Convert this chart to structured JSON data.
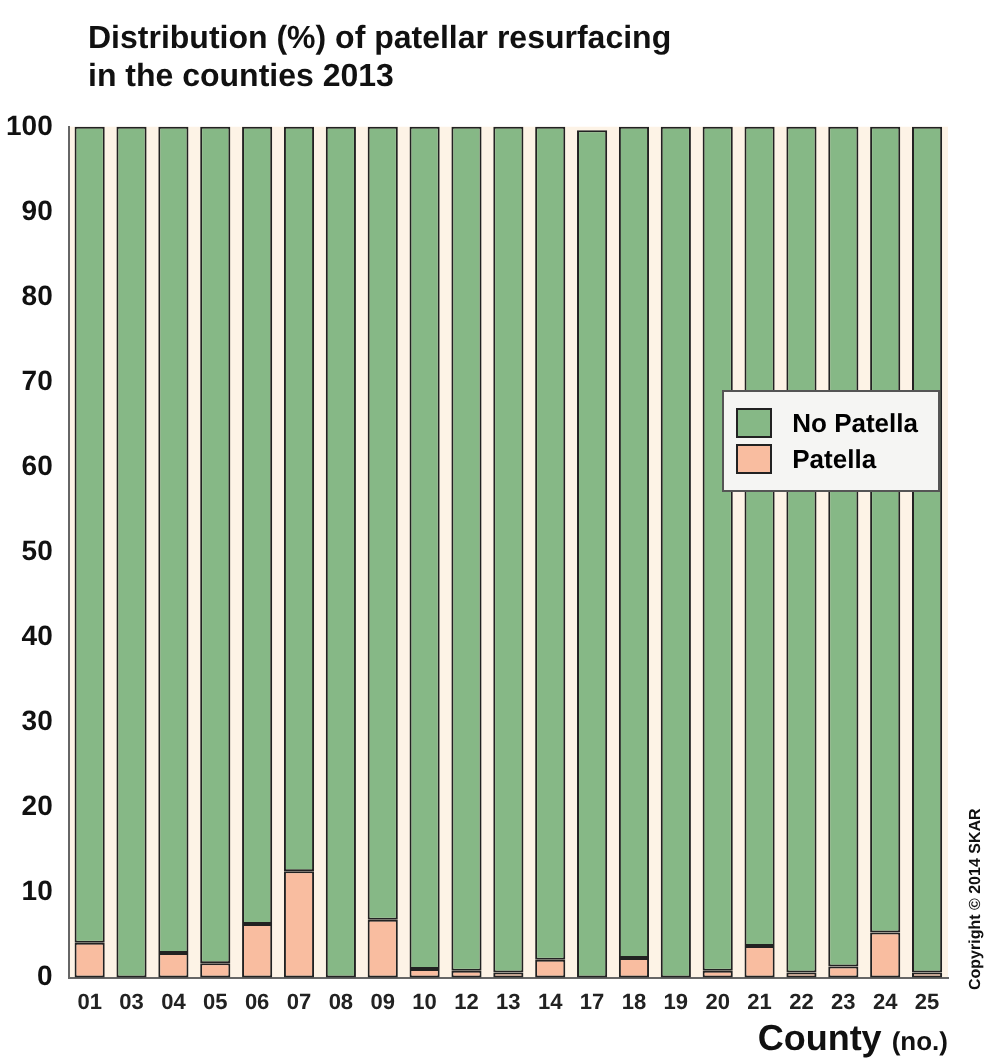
{
  "chart_data": {
    "type": "bar",
    "title": "Distribution (%) of patellar resurfacing in the counties 2013",
    "xlabel": "County (no.)",
    "categories": [
      "01",
      "03",
      "04",
      "05",
      "06",
      "07",
      "08",
      "09",
      "10",
      "12",
      "13",
      "14",
      "17",
      "18",
      "19",
      "20",
      "21",
      "22",
      "23",
      "24",
      "25"
    ],
    "stacked": true,
    "series": [
      {
        "name": "Patella",
        "color": "#f9bda0",
        "values": [
          4.1,
          0,
          2.9,
          1.7,
          6.3,
          12.5,
          0,
          6.8,
          1.0,
          0.8,
          0.6,
          2.1,
          0,
          2.3,
          0,
          0.8,
          3.7,
          0.6,
          1.3,
          5.3,
          0.6
        ]
      },
      {
        "name": "No Patella",
        "color": "#86b886",
        "values": [
          95.9,
          100,
          97.1,
          98.3,
          93.7,
          87.5,
          100,
          93.2,
          99.0,
          99.2,
          99.4,
          97.9,
          99.6,
          97.7,
          100,
          99.2,
          96.3,
          99.4,
          98.7,
          94.7,
          99.4
        ]
      }
    ],
    "ylim": [
      0,
      100
    ],
    "yticks": [
      0,
      10,
      20,
      30,
      40,
      50,
      60,
      70,
      80,
      90,
      100
    ],
    "grid": false,
    "legend": "right",
    "annotations": [
      "Copyright © 2014 SKAR"
    ]
  }
}
